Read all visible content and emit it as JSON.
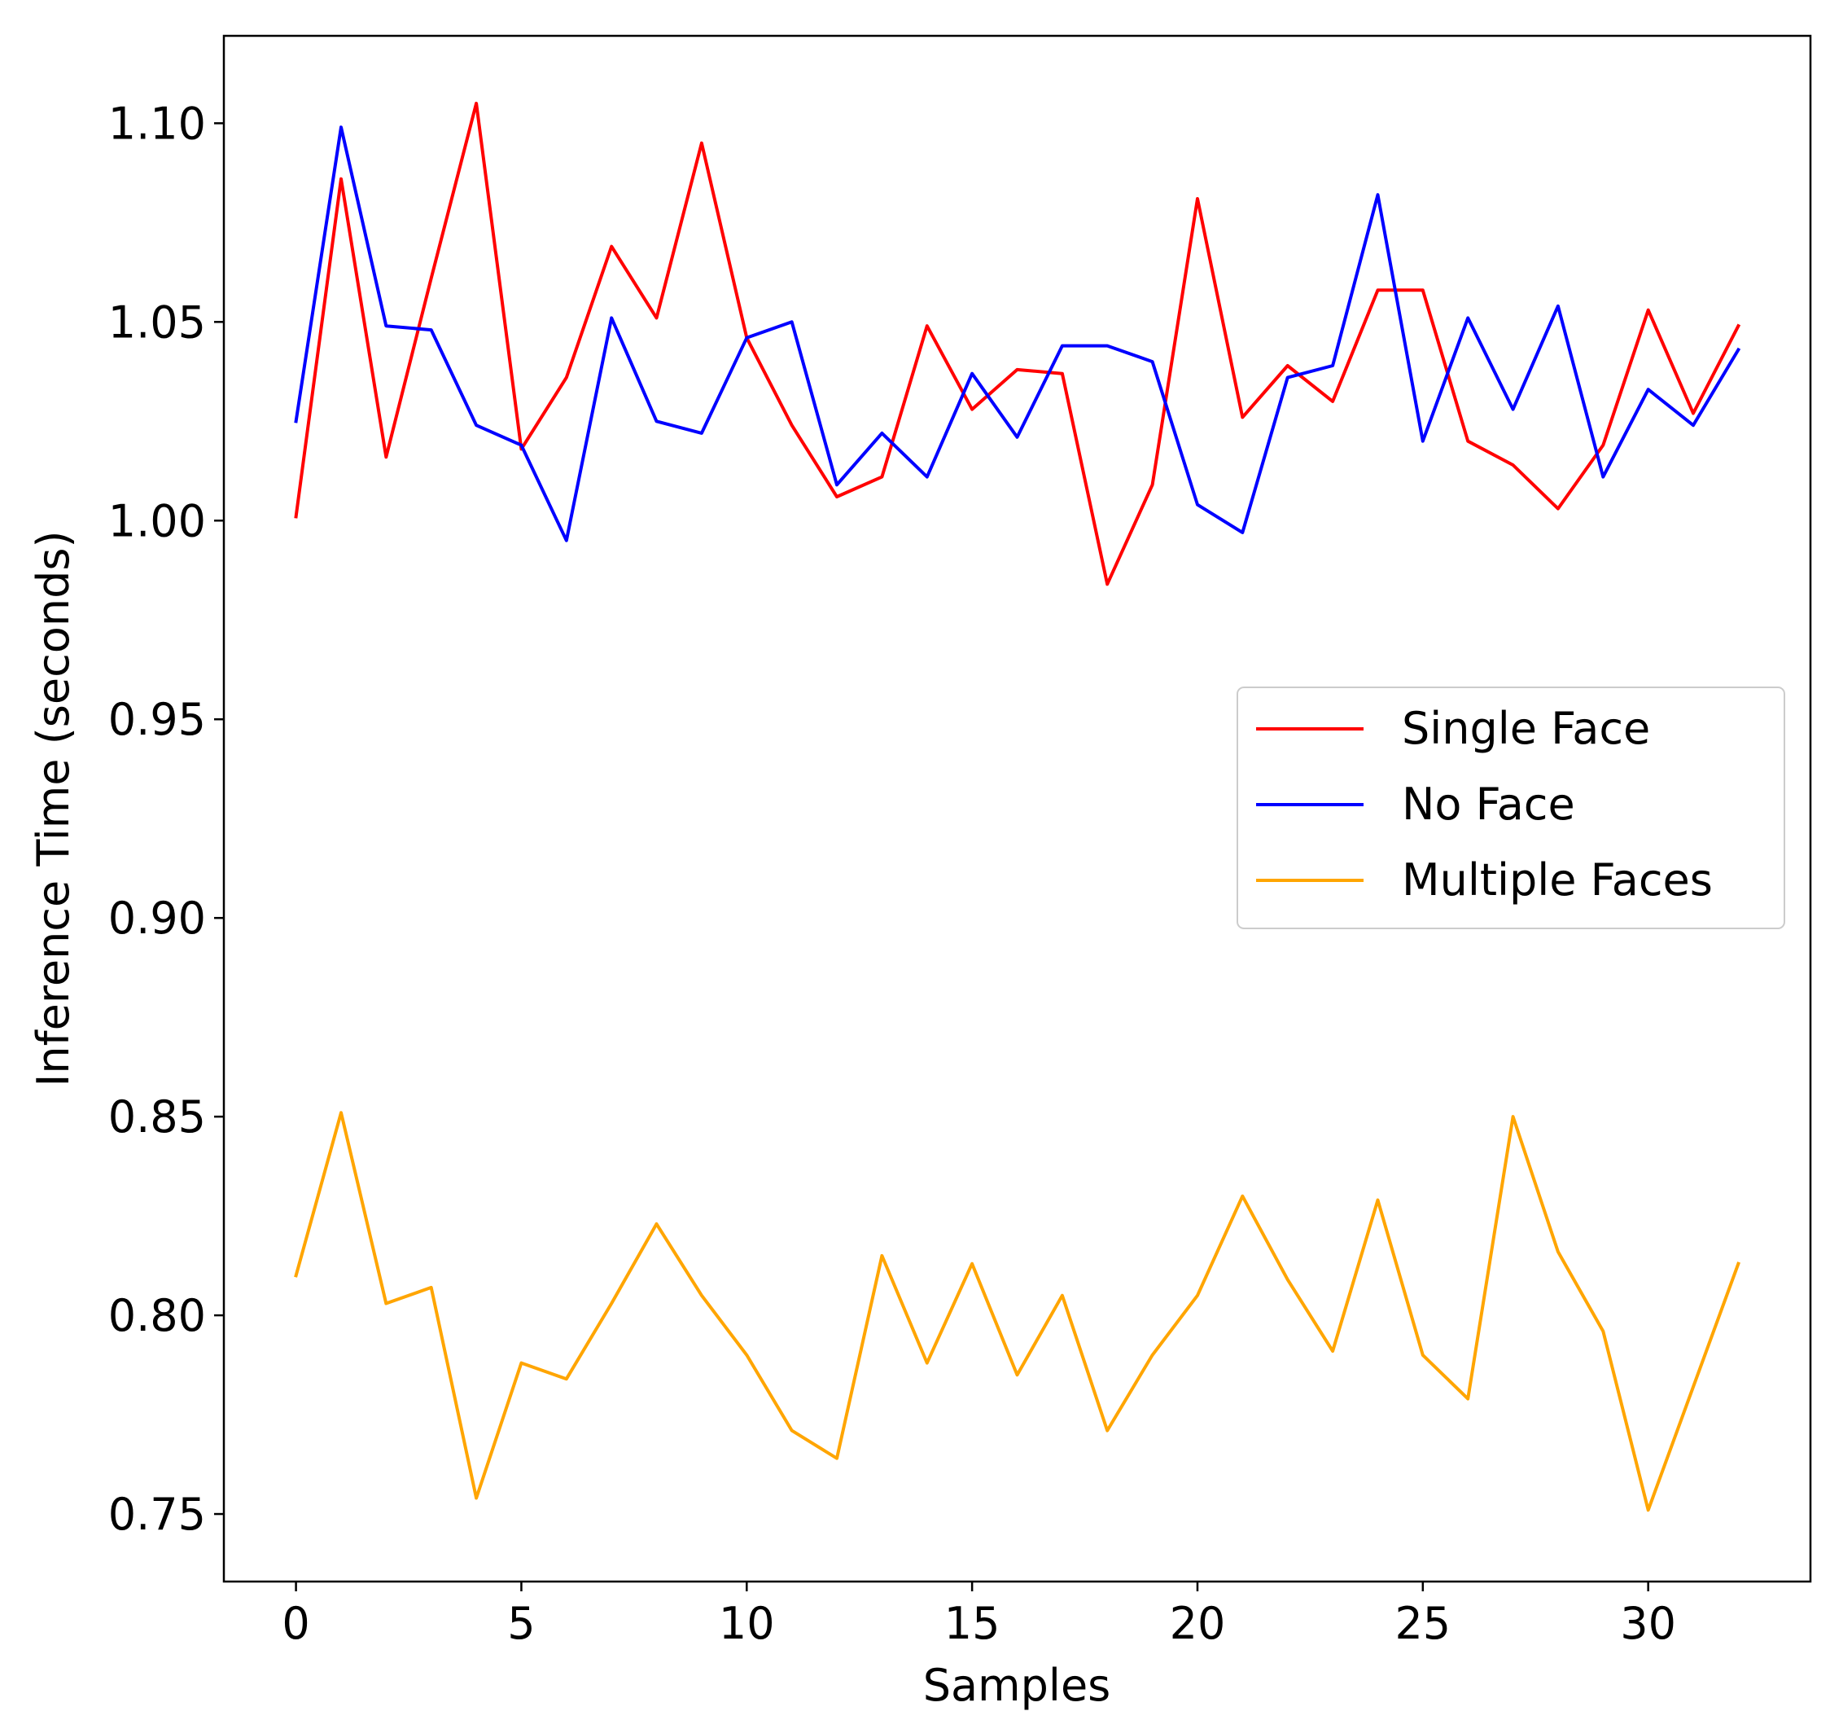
{
  "chart_data": {
    "type": "line",
    "title": "",
    "xlabel": "Samples",
    "ylabel": "Inference Time (seconds)",
    "xlim": [
      -1.6,
      33.6
    ],
    "ylim": [
      0.733,
      1.122
    ],
    "x": [
      0,
      1,
      2,
      3,
      4,
      5,
      6,
      7,
      8,
      9,
      10,
      11,
      12,
      13,
      14,
      15,
      16,
      17,
      18,
      19,
      20,
      21,
      22,
      23,
      24,
      25,
      26,
      27,
      28,
      29,
      30,
      31,
      32
    ],
    "xticks": [
      0,
      5,
      10,
      15,
      20,
      25,
      30
    ],
    "xtick_labels": [
      "0",
      "5",
      "10",
      "15",
      "20",
      "25",
      "30"
    ],
    "yticks": [
      0.75,
      0.8,
      0.85,
      0.9,
      0.95,
      1.0,
      1.05,
      1.1
    ],
    "ytick_labels": [
      "0.75",
      "0.80",
      "0.85",
      "0.90",
      "0.95",
      "1.00",
      "1.05",
      "1.10"
    ],
    "grid": false,
    "legend_position": "center-right",
    "series": [
      {
        "name": "Single Face",
        "color": "#ff0000",
        "values": [
          1.001,
          1.086,
          1.016,
          1.061,
          1.105,
          1.018,
          1.036,
          1.069,
          1.051,
          1.095,
          1.046,
          1.024,
          1.006,
          1.011,
          1.049,
          1.028,
          1.038,
          1.037,
          0.984,
          1.009,
          1.081,
          1.026,
          1.039,
          1.03,
          1.058,
          1.058,
          1.02,
          1.014,
          1.003,
          1.019,
          1.053,
          1.027,
          1.049
        ]
      },
      {
        "name": "No Face",
        "color": "#0000ff",
        "values": [
          1.025,
          1.099,
          1.049,
          1.048,
          1.024,
          1.019,
          0.995,
          1.051,
          1.025,
          1.022,
          1.046,
          1.05,
          1.009,
          1.022,
          1.011,
          1.037,
          1.021,
          1.044,
          1.044,
          1.04,
          1.004,
          0.997,
          1.036,
          1.039,
          1.082,
          1.02,
          1.051,
          1.028,
          1.054,
          1.011,
          1.033,
          1.024,
          1.043
        ]
      },
      {
        "name": "Multiple Faces",
        "color": "#ffa500",
        "values": [
          0.81,
          0.851,
          0.803,
          0.807,
          0.754,
          0.788,
          0.784,
          0.803,
          0.823,
          0.805,
          0.79,
          0.771,
          0.764,
          0.815,
          0.788,
          0.813,
          0.785,
          0.805,
          0.771,
          0.79,
          0.805,
          0.83,
          0.809,
          0.791,
          0.829,
          0.79,
          0.779,
          0.85,
          0.816,
          0.796,
          0.751,
          0.782,
          0.813
        ]
      }
    ]
  }
}
